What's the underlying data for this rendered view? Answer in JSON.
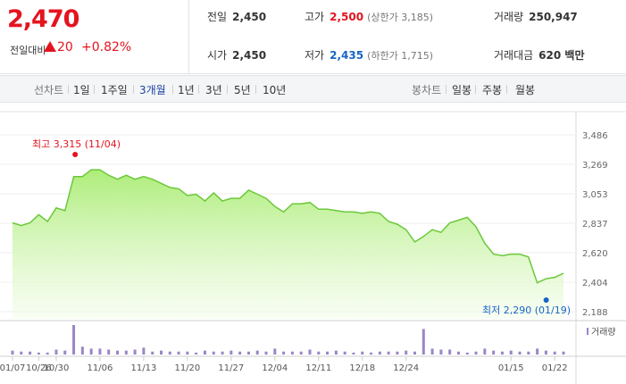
{
  "quote": {
    "price": "2,470",
    "change_label": "전일대비",
    "change_value": "20",
    "change_pct": "+0.82%",
    "up_color": "#e4141f",
    "down_color": "#1765c8"
  },
  "stats": {
    "prev_close_label": "전일",
    "prev_close": "2,450",
    "high_label": "고가",
    "high": "2,500",
    "upper_limit": "(상한가 3,185)",
    "volume_label": "거래량",
    "volume": "250,947",
    "open_label": "시가",
    "open": "2,450",
    "low_label": "저가",
    "low": "2,435",
    "lower_limit": "(하한가 1,715)",
    "amount_label": "거래대금",
    "amount": "620 백만"
  },
  "toolbar": {
    "line_chart_label": "선차트",
    "periods": [
      "1일",
      "1주일",
      "3개월",
      "1년",
      "3년",
      "5년",
      "10년"
    ],
    "active_period": "3개월",
    "candle_chart_label": "봉차트",
    "candle_periods": [
      "일봉",
      "주봉",
      "월봉"
    ]
  },
  "chart_data": {
    "type": "area",
    "x": [
      "10/23",
      "10/24",
      "10/25",
      "10/26",
      "10/27",
      "10/30",
      "10/31",
      "11/01",
      "11/02",
      "11/03",
      "11/06",
      "11/07",
      "11/08",
      "11/09",
      "11/10",
      "11/13",
      "11/14",
      "11/15",
      "11/16",
      "11/17",
      "11/20",
      "11/21",
      "11/22",
      "11/23",
      "11/24",
      "11/27",
      "11/28",
      "11/29",
      "11/30",
      "12/01",
      "12/04",
      "12/05",
      "12/06",
      "12/07",
      "12/08",
      "12/11",
      "12/12",
      "12/13",
      "12/14",
      "12/15",
      "12/18",
      "12/19",
      "12/20",
      "12/21",
      "12/22",
      "12/26",
      "12/27",
      "12/28",
      "01/02",
      "01/03",
      "01/04",
      "01/05",
      "01/08",
      "01/09",
      "01/10",
      "01/11",
      "01/12",
      "01/15",
      "01/16",
      "01/17",
      "01/18",
      "01/19",
      "01/22",
      "01/23"
    ],
    "series": [
      {
        "values": [
          2840,
          2820,
          2840,
          2900,
          2850,
          2950,
          2930,
          3180,
          3180,
          3230,
          3230,
          3190,
          3160,
          3190,
          3160,
          3180,
          3160,
          3130,
          3100,
          3090,
          3040,
          3050,
          3000,
          3060,
          3000,
          3020,
          3020,
          3080,
          3050,
          3020,
          2960,
          2920,
          2980,
          2980,
          2990,
          2940,
          2940,
          2930,
          2920,
          2920,
          2910,
          2920,
          2910,
          2850,
          2830,
          2790,
          2700,
          2740,
          2790,
          2770,
          2840,
          2860,
          2880,
          2810,
          2690,
          2610,
          2600,
          2610,
          2610,
          2590,
          2400,
          2430,
          2440,
          2470
        ]
      }
    ],
    "volume": [
      4,
      3,
      3,
      2,
      2,
      5,
      4,
      30,
      8,
      6,
      6,
      5,
      4,
      4,
      5,
      7,
      3,
      4,
      3,
      3,
      3,
      2,
      4,
      3,
      3,
      4,
      3,
      3,
      4,
      3,
      6,
      3,
      3,
      3,
      5,
      3,
      3,
      4,
      3,
      2,
      3,
      2,
      3,
      3,
      3,
      4,
      3,
      26,
      6,
      5,
      5,
      3,
      2,
      3,
      6,
      4,
      3,
      4,
      3,
      3,
      6,
      4,
      3,
      3
    ],
    "ylim": [
      2188,
      3486
    ],
    "y_ticks": [
      "3,486",
      "3,269",
      "3,053",
      "2,837",
      "2,620",
      "2,404",
      "2,188"
    ],
    "x_ticks": [
      "10/26",
      "10/30",
      "11/06",
      "11/13",
      "11/20",
      "11/27",
      "12/04",
      "12/11",
      "12/18",
      "12/24",
      "01/07",
      "01/15",
      "01/22"
    ],
    "high_annotation": "최고 3,315 (11/04)",
    "low_annotation": "최저 2,290 (01/19)",
    "volume_legend": "거래량",
    "line_color": "#6cc83a",
    "fill_color": "#b8f08c",
    "volume_color": "#9a86c8",
    "high_marker_color": "#e4141f",
    "low_marker_color": "#1765c8"
  }
}
